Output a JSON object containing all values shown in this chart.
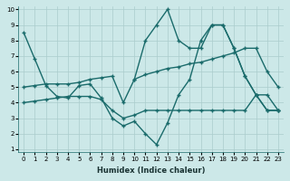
{
  "xlabel": "Humidex (Indice chaleur)",
  "ylabel": "",
  "bg_color": "#cce8e8",
  "line_color": "#1a6b6b",
  "grid_color": "#aacccc",
  "xlim": [
    0,
    23
  ],
  "ylim": [
    1,
    10
  ],
  "xticks": [
    0,
    1,
    2,
    3,
    4,
    5,
    6,
    7,
    8,
    9,
    10,
    11,
    12,
    13,
    14,
    15,
    16,
    17,
    18,
    19,
    20,
    21,
    22,
    23
  ],
  "yticks": [
    1,
    2,
    3,
    4,
    5,
    6,
    7,
    8,
    9,
    10
  ],
  "line1_x": [
    0,
    1,
    2,
    3,
    4,
    5,
    6,
    7,
    8,
    9,
    10,
    11,
    12,
    13,
    14,
    15,
    16,
    17,
    18,
    19,
    20,
    21,
    22,
    23
  ],
  "line1_y": [
    5.0,
    5.1,
    5.2,
    5.2,
    5.2,
    5.3,
    5.5,
    5.6,
    5.7,
    4.0,
    5.5,
    5.8,
    6.0,
    6.2,
    6.3,
    6.5,
    6.6,
    6.8,
    7.0,
    7.2,
    7.5,
    7.5,
    6.0,
    5.0
  ],
  "line2_x": [
    0,
    1,
    2,
    3,
    4,
    5,
    6,
    7,
    8,
    9,
    10,
    11,
    12,
    13,
    14,
    15,
    16,
    17,
    18,
    19,
    20,
    21,
    22,
    23
  ],
  "line2_y": [
    4.0,
    4.1,
    4.2,
    4.3,
    4.4,
    4.4,
    4.4,
    4.2,
    3.5,
    3.0,
    3.2,
    3.5,
    3.5,
    3.5,
    3.5,
    3.5,
    3.5,
    3.5,
    3.5,
    3.5,
    3.5,
    4.5,
    3.5,
    3.5
  ],
  "line3_x": [
    0,
    1,
    2,
    3,
    4,
    5,
    6,
    7,
    8,
    9,
    10,
    11,
    12,
    13,
    14,
    15,
    16,
    17,
    18,
    19,
    20,
    21,
    22,
    23
  ],
  "line3_y": [
    8.5,
    6.8,
    5.1,
    4.4,
    4.3,
    5.1,
    5.2,
    4.3,
    3.0,
    2.5,
    2.8,
    2.0,
    1.3,
    2.7,
    4.5,
    5.5,
    8.0,
    9.0,
    9.0,
    7.5,
    5.7,
    4.5,
    3.5,
    3.5
  ],
  "line4_x": [
    10,
    11,
    12,
    13,
    14,
    15,
    16,
    17,
    18,
    19,
    20,
    21,
    22,
    23
  ],
  "line4_y": [
    5.5,
    8.0,
    9.0,
    10.0,
    8.0,
    7.5,
    7.5,
    9.0,
    9.0,
    7.5,
    5.7,
    4.5,
    4.5,
    3.5
  ]
}
